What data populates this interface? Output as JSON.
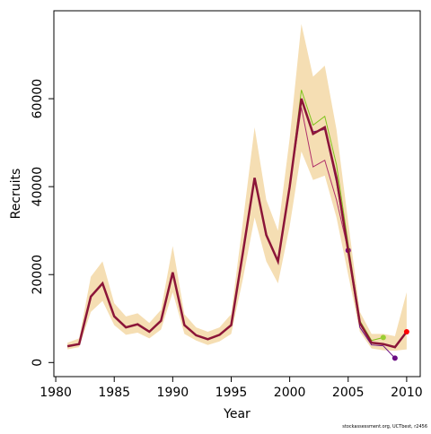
{
  "chart_data": {
    "type": "line",
    "xlabel": "Year",
    "ylabel": "Recruits",
    "footnote": "stockassessment.org, UCTbest, r2456",
    "x": [
      1981,
      1982,
      1983,
      1984,
      1985,
      1986,
      1987,
      1988,
      1989,
      1990,
      1991,
      1992,
      1993,
      1994,
      1995,
      1996,
      1997,
      1998,
      1999,
      2000,
      2001,
      2002,
      2003,
      2004,
      2005,
      2006,
      2007,
      2008,
      2009,
      2010
    ],
    "band": {
      "color": "#f5deb3",
      "upper": [
        4500,
        5500,
        19500,
        23000,
        13500,
        10500,
        11200,
        9000,
        12000,
        26500,
        11000,
        8000,
        7000,
        8000,
        11000,
        32000,
        53500,
        37000,
        30000,
        51000,
        77000,
        65000,
        67500,
        53000,
        32000,
        11500,
        6500,
        6500,
        6000,
        16000
      ],
      "lower": [
        3000,
        3500,
        11500,
        14000,
        8500,
        6300,
        6800,
        5500,
        7500,
        16000,
        6500,
        5000,
        4000,
        4800,
        6500,
        19000,
        33000,
        23000,
        18000,
        31000,
        48000,
        41500,
        42500,
        33000,
        20000,
        7000,
        3200,
        2800,
        2700,
        3000
      ]
    },
    "series": [
      {
        "color": "#b0306a",
        "end_color": "#800080",
        "width": 1,
        "values": [
          null,
          null,
          null,
          null,
          null,
          null,
          null,
          null,
          null,
          null,
          null,
          null,
          null,
          null,
          null,
          null,
          null,
          null,
          null,
          40000,
          58000,
          44500,
          46000,
          37000,
          25500,
          null,
          null,
          null,
          null,
          null
        ]
      },
      {
        "color": "#6a0d83",
        "end_color": "#6a0d83",
        "width": 1,
        "values": [
          null,
          null,
          null,
          null,
          null,
          null,
          null,
          null,
          null,
          null,
          null,
          null,
          null,
          null,
          null,
          null,
          null,
          null,
          null,
          40000,
          60000,
          52500,
          53000,
          41000,
          25000,
          8000,
          4000,
          3800,
          1000,
          null
        ]
      },
      {
        "color": "#7fc31c",
        "end_color": "#9acd32",
        "width": 1,
        "values": [
          null,
          null,
          null,
          null,
          null,
          null,
          null,
          null,
          null,
          null,
          null,
          null,
          null,
          null,
          null,
          null,
          null,
          null,
          null,
          40000,
          62000,
          54000,
          56000,
          45000,
          27000,
          9500,
          5000,
          5700,
          null,
          null
        ]
      },
      {
        "color": "#8b1538",
        "end_color": "#ff0000",
        "width": 2.5,
        "values": [
          3700,
          4200,
          15000,
          18000,
          10500,
          8000,
          8700,
          7000,
          9500,
          20500,
          8500,
          6200,
          5300,
          6300,
          8500,
          25000,
          42000,
          29000,
          23000,
          40000,
          60000,
          52000,
          53500,
          42000,
          25500,
          9000,
          4500,
          4200,
          3500,
          7000
        ]
      }
    ],
    "xlim": [
      1979.84,
      2011.16
    ],
    "ylim": [
      -3200,
      80000
    ],
    "xticks": [
      1980,
      1985,
      1990,
      1995,
      2000,
      2005,
      2010
    ],
    "yticks": [
      0,
      20000,
      40000,
      60000
    ]
  }
}
